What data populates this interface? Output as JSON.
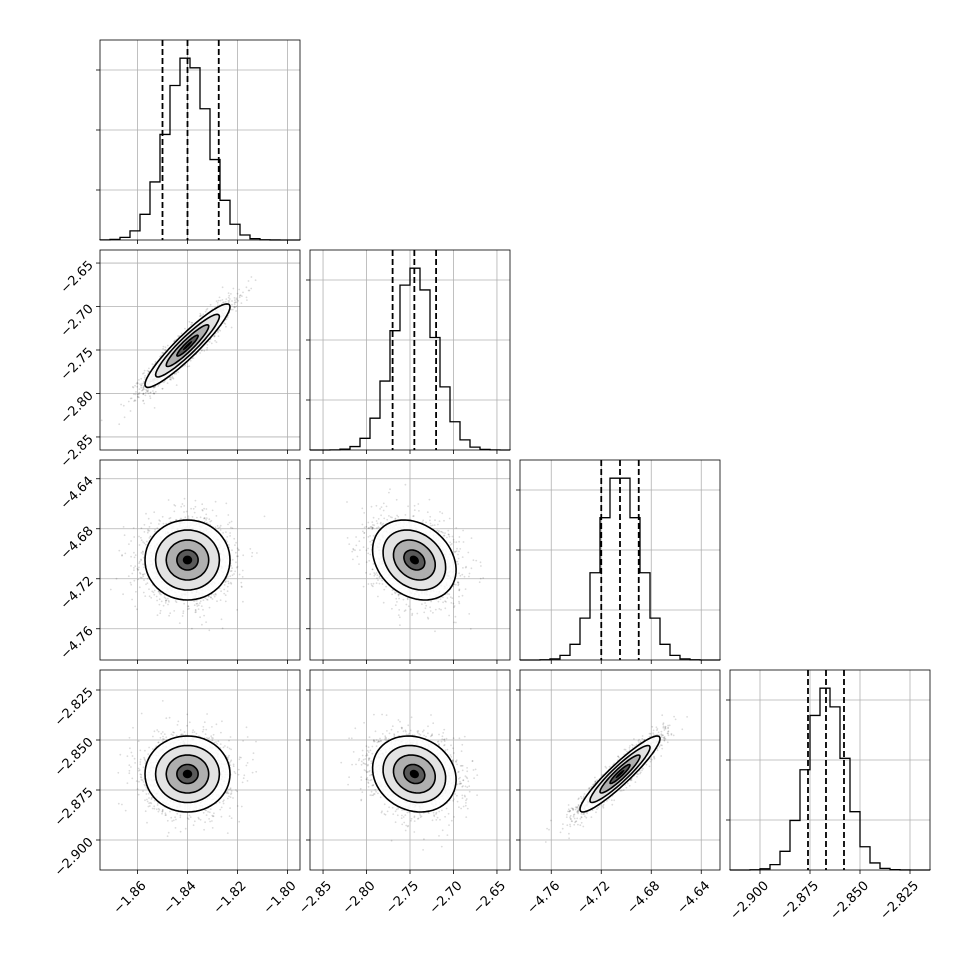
{
  "chart_data": {
    "type": "corner",
    "parameters": [
      {
        "index": 0,
        "median": -1.84,
        "q16": -1.85,
        "q84": -1.8275,
        "sd": 0.0085,
        "range": [
          -1.875,
          -1.795
        ],
        "ticks": [
          -1.86,
          -1.84,
          -1.82,
          -1.8
        ],
        "tick_labels": [
          "−1.86",
          "−1.84",
          "−1.82",
          "−1.80"
        ]
      },
      {
        "index": 1,
        "median": -2.745,
        "q16": -2.77,
        "q84": -2.72,
        "sd": 0.024,
        "range": [
          -2.865,
          -2.635
        ],
        "ticks": [
          -2.85,
          -2.8,
          -2.75,
          -2.7,
          -2.65
        ],
        "tick_labels": [
          "−2.85",
          "−2.80",
          "−2.75",
          "−2.70",
          "−2.65"
        ]
      },
      {
        "index": 2,
        "median": -4.705,
        "q16": -4.72,
        "q84": -4.69,
        "sd": 0.016,
        "range": [
          -4.785,
          -4.625
        ],
        "ticks": [
          -4.76,
          -4.72,
          -4.68,
          -4.64
        ],
        "tick_labels": [
          "−4.76",
          "−4.72",
          "−4.68",
          "−4.64"
        ]
      },
      {
        "index": 3,
        "median": -2.867,
        "q16": -2.876,
        "q84": -2.858,
        "sd": 0.0095,
        "range": [
          -2.915,
          -2.815
        ],
        "ticks": [
          -2.9,
          -2.875,
          -2.85,
          -2.825
        ],
        "tick_labels": [
          "−2.900",
          "−2.875",
          "−2.850",
          "−2.825"
        ]
      }
    ],
    "correlations": [
      [
        1.0,
        0.93,
        0.0,
        0.0
      ],
      [
        0.93,
        1.0,
        -0.25,
        -0.15
      ],
      [
        0.0,
        -0.25,
        1.0,
        0.93
      ],
      [
        0.0,
        -0.15,
        0.93,
        1.0
      ]
    ],
    "contour_levels_sigma": [
      0.5,
      1.0,
      1.5,
      2.0
    ],
    "quantiles": [
      0.16,
      0.5,
      0.84
    ],
    "grid": true
  }
}
